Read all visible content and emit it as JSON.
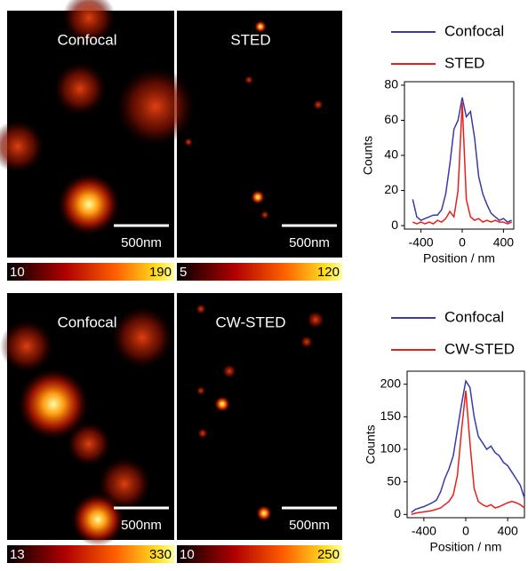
{
  "panels": [
    {
      "label": "Confocal",
      "scale_bar": "500nm",
      "color_min": 10,
      "color_max": 190
    },
    {
      "label": "STED",
      "scale_bar": "500nm",
      "color_min": 5,
      "color_max": 120
    },
    {
      "label": "Confocal",
      "scale_bar": "500nm",
      "color_min": 13,
      "color_max": 330
    },
    {
      "label": "CW-STED",
      "scale_bar": "500nm",
      "color_min": 10,
      "color_max": 250
    }
  ],
  "chart_data": [
    {
      "type": "line",
      "x_label": "Position / nm",
      "y_label": "Counts",
      "x": [
        -480,
        -440,
        -400,
        -360,
        -320,
        -280,
        -240,
        -200,
        -160,
        -120,
        -80,
        -40,
        0,
        40,
        80,
        120,
        160,
        200,
        240,
        280,
        320,
        360,
        400,
        440,
        480
      ],
      "series": [
        {
          "name": "Confocal",
          "color": "#3a3aa8",
          "values": [
            15,
            5,
            3,
            4,
            5,
            6,
            6,
            9,
            18,
            35,
            55,
            60,
            73,
            62,
            65,
            50,
            28,
            18,
            12,
            7,
            5,
            3,
            4,
            2,
            3
          ]
        },
        {
          "name": "STED",
          "color": "#e8201c",
          "values": [
            2,
            1,
            2,
            1,
            2,
            1,
            3,
            2,
            4,
            8,
            5,
            20,
            70,
            15,
            5,
            3,
            4,
            2,
            3,
            2,
            3,
            2,
            2,
            1,
            2
          ]
        }
      ],
      "xlim": [
        -560,
        500
      ],
      "xticks": [
        -400,
        0,
        400
      ],
      "ylim": [
        -2,
        82
      ],
      "yticks": [
        0,
        20,
        40,
        60,
        80
      ]
    },
    {
      "type": "line",
      "x_label": "Position / nm",
      "y_label": "Counts",
      "x": [
        -520,
        -480,
        -440,
        -400,
        -360,
        -320,
        -280,
        -240,
        -200,
        -160,
        -120,
        -80,
        -40,
        0,
        40,
        80,
        120,
        160,
        200,
        240,
        280,
        320,
        360,
        400,
        440,
        480,
        520,
        560
      ],
      "series": [
        {
          "name": "Confocal",
          "color": "#3a3aa8",
          "values": [
            3,
            8,
            10,
            12,
            15,
            18,
            22,
            35,
            55,
            70,
            90,
            130,
            170,
            205,
            195,
            150,
            120,
            110,
            100,
            105,
            95,
            90,
            80,
            75,
            65,
            55,
            45,
            25
          ]
        },
        {
          "name": "CW-STED",
          "color": "#e8201c",
          "values": [
            0,
            2,
            3,
            4,
            5,
            6,
            8,
            10,
            15,
            20,
            30,
            60,
            130,
            190,
            110,
            40,
            20,
            15,
            12,
            15,
            10,
            12,
            15,
            18,
            20,
            18,
            15,
            10
          ]
        }
      ],
      "xlim": [
        -560,
        560
      ],
      "xticks": [
        -400,
        0,
        400
      ],
      "ylim": [
        -5,
        220
      ],
      "yticks": [
        0,
        50,
        100,
        150,
        200
      ]
    }
  ]
}
